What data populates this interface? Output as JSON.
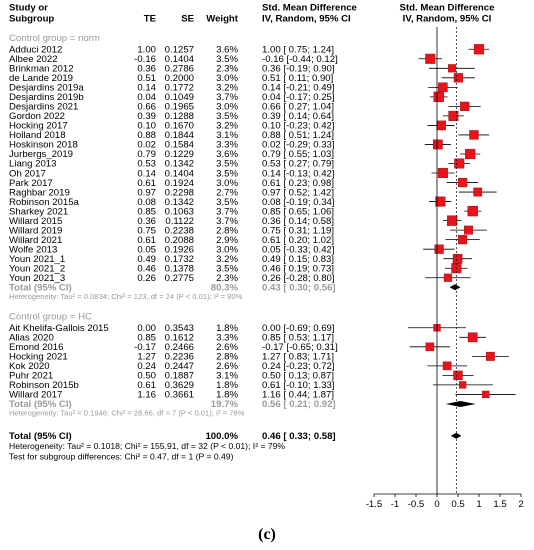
{
  "caption": "(c)",
  "headers": {
    "study_line1": "Study or",
    "study_line2": "Subgroup",
    "te": "TE",
    "se": "SE",
    "weight": "Weight",
    "md_line1": "Std. Mean Difference",
    "md_line2": "IV, Random, 95% CI",
    "plot_line1": "Std. Mean Difference",
    "plot_line2": "IV, Random, 95% CI"
  },
  "chart_data": {
    "type": "forest",
    "title": "",
    "xlabel": "",
    "xlim": [
      -1.5,
      2.0
    ],
    "x_ticks": [
      "-1.5",
      "-1",
      "-0.5",
      "0",
      "0.5",
      "1",
      "1.5",
      "2"
    ],
    "null_line": 0,
    "overall_dashed_line": 0.46,
    "subgroups": [
      {
        "label": "Control group = norm",
        "studies": [
          {
            "name": "Adduci 2012",
            "te": "1.00",
            "se": "0.1257",
            "weight": "3.6%",
            "ci_text": "1.00 [ 0.75; 1.24]",
            "est": 1.0,
            "lo": 0.75,
            "hi": 1.24
          },
          {
            "name": "Albee 2022",
            "te": "-0.16",
            "se": "0.1404",
            "weight": "3.5%",
            "ci_text": "-0.16 [-0.44; 0.12]",
            "est": -0.16,
            "lo": -0.44,
            "hi": 0.12
          },
          {
            "name": "Brinkman 2012",
            "te": "0.36",
            "se": "0.2786",
            "weight": "2.3%",
            "ci_text": "0.36 [-0.19; 0.90]",
            "est": 0.36,
            "lo": -0.19,
            "hi": 0.9
          },
          {
            "name": "de Lande 2019",
            "te": "0.51",
            "se": "0.2000",
            "weight": "3.0%",
            "ci_text": "0.51 [ 0.11; 0.90]",
            "est": 0.51,
            "lo": 0.11,
            "hi": 0.9
          },
          {
            "name": "Desjardins 2019a",
            "te": "0.14",
            "se": "0.1772",
            "weight": "3.2%",
            "ci_text": "0.14 [-0.21; 0.49]",
            "est": 0.14,
            "lo": -0.21,
            "hi": 0.49
          },
          {
            "name": "Desjardins 2019b",
            "te": "0.04",
            "se": "0.1049",
            "weight": "3.7%",
            "ci_text": "0.04 [-0.17; 0.25]",
            "est": 0.04,
            "lo": -0.17,
            "hi": 0.25
          },
          {
            "name": "Desjardins 2021",
            "te": "0.66",
            "se": "0.1965",
            "weight": "3.0%",
            "ci_text": "0.66 [ 0.27; 1.04]",
            "est": 0.66,
            "lo": 0.27,
            "hi": 1.04
          },
          {
            "name": "Gordon 2022",
            "te": "0.39",
            "se": "0.1288",
            "weight": "3.5%",
            "ci_text": "0.39 [ 0.14; 0.64]",
            "est": 0.39,
            "lo": 0.14,
            "hi": 0.64
          },
          {
            "name": "Hocking 2017",
            "te": "0.10",
            "se": "0.1670",
            "weight": "3.2%",
            "ci_text": "0.10 [-0.23; 0.42]",
            "est": 0.1,
            "lo": -0.23,
            "hi": 0.42
          },
          {
            "name": "Holland 2018",
            "te": "0.88",
            "se": "0.1844",
            "weight": "3.1%",
            "ci_text": "0.88 [ 0.51; 1.24]",
            "est": 0.88,
            "lo": 0.51,
            "hi": 1.24
          },
          {
            "name": "Hoskinson 2018",
            "te": "0.02",
            "se": "0.1584",
            "weight": "3.3%",
            "ci_text": "0.02 [-0.29; 0.33]",
            "est": 0.02,
            "lo": -0.29,
            "hi": 0.33
          },
          {
            "name": "Jurbergs_2019",
            "te": "0.79",
            "se": "0.1229",
            "weight": "3.6%",
            "ci_text": "0.79 [ 0.55; 1.03]",
            "est": 0.79,
            "lo": 0.55,
            "hi": 1.03
          },
          {
            "name": "Liang 2013",
            "te": "0.53",
            "se": "0.1342",
            "weight": "3.5%",
            "ci_text": "0.53 [ 0.27; 0.79]",
            "est": 0.53,
            "lo": 0.27,
            "hi": 0.79
          },
          {
            "name": "Oh 2017",
            "te": "0.14",
            "se": "0.1404",
            "weight": "3.5%",
            "ci_text": "0.14 [-0.13; 0.42]",
            "est": 0.14,
            "lo": -0.13,
            "hi": 0.42
          },
          {
            "name": "Park 2017",
            "te": "0.61",
            "se": "0.1924",
            "weight": "3.0%",
            "ci_text": "0.61 [ 0.23; 0.98]",
            "est": 0.61,
            "lo": 0.23,
            "hi": 0.98
          },
          {
            "name": "Raghbar 2019",
            "te": "0.97",
            "se": "0.2298",
            "weight": "2.7%",
            "ci_text": "0.97 [ 0.52; 1.42]",
            "est": 0.97,
            "lo": 0.52,
            "hi": 1.42
          },
          {
            "name": "Robinson 2015a",
            "te": "0.08",
            "se": "0.1342",
            "weight": "3.5%",
            "ci_text": "0.08 [-0.19; 0.34]",
            "est": 0.08,
            "lo": -0.19,
            "hi": 0.34
          },
          {
            "name": "Sharkey 2021",
            "te": "0.85",
            "se": "0.1063",
            "weight": "3.7%",
            "ci_text": "0.85 [ 0.65; 1.06]",
            "est": 0.85,
            "lo": 0.65,
            "hi": 1.06
          },
          {
            "name": "Willard 2015",
            "te": "0.36",
            "se": "0.1122",
            "weight": "3.7%",
            "ci_text": "0.36 [ 0.14; 0.58]",
            "est": 0.36,
            "lo": 0.14,
            "hi": 0.58
          },
          {
            "name": "Willard 2019",
            "te": "0.75",
            "se": "0.2238",
            "weight": "2.8%",
            "ci_text": "0.75 [ 0.31; 1.19]",
            "est": 0.75,
            "lo": 0.31,
            "hi": 1.19
          },
          {
            "name": "Willard 2021",
            "te": "0.61",
            "se": "0.2088",
            "weight": "2.9%",
            "ci_text": "0.61 [ 0.20; 1.02]",
            "est": 0.61,
            "lo": 0.2,
            "hi": 1.02
          },
          {
            "name": "Wolfe 2013",
            "te": "0.05",
            "se": "0.1926",
            "weight": "3.0%",
            "ci_text": "0.05 [-0.33; 0.42]",
            "est": 0.05,
            "lo": -0.33,
            "hi": 0.42
          },
          {
            "name": "Youn 2021_1",
            "te": "0.49",
            "se": "0.1732",
            "weight": "3.2%",
            "ci_text": "0.49 [ 0.15; 0.83]",
            "est": 0.49,
            "lo": 0.15,
            "hi": 0.83
          },
          {
            "name": "Youn 2021_2",
            "te": "0.46",
            "se": "0.1378",
            "weight": "3.5%",
            "ci_text": "0.46 [ 0.19; 0.73]",
            "est": 0.46,
            "lo": 0.19,
            "hi": 0.73
          },
          {
            "name": "Youn 2021_3",
            "te": "0.26",
            "se": "0.2775",
            "weight": "2.3%",
            "ci_text": "0.26 [-0.28; 0.80]",
            "est": 0.26,
            "lo": -0.28,
            "hi": 0.8
          }
        ],
        "total": {
          "label": "Total (95% CI)",
          "weight": "80.3%",
          "ci_text": "0.43 [ 0.30; 0.56]",
          "est": 0.43,
          "lo": 0.3,
          "hi": 0.56
        },
        "heterogeneity": "Heterogeneity: Tau² = 0.0834; Chi² = 123, df = 24 (P < 0.01); I² = 80%"
      },
      {
        "label": "Control group = HC",
        "studies": [
          {
            "name": "Ait Khelifa-Gallois 2015",
            "te": "0.00",
            "se": "0.3543",
            "weight": "1.8%",
            "ci_text": "0.00 [-0.69; 0.69]",
            "est": 0.0,
            "lo": -0.69,
            "hi": 0.69
          },
          {
            "name": "Alias 2020",
            "te": "0.85",
            "se": "0.1612",
            "weight": "3.3%",
            "ci_text": "0.85 [ 0.53; 1.17]",
            "est": 0.85,
            "lo": 0.53,
            "hi": 1.17
          },
          {
            "name": "Emond 2016",
            "te": "-0.17",
            "se": "0.2466",
            "weight": "2.6%",
            "ci_text": "-0.17 [-0.65; 0.31]",
            "est": -0.17,
            "lo": -0.65,
            "hi": 0.31
          },
          {
            "name": "Hocking 2021",
            "te": "1.27",
            "se": "0.2236",
            "weight": "2.8%",
            "ci_text": "1.27 [ 0.83; 1.71]",
            "est": 1.27,
            "lo": 0.83,
            "hi": 1.71
          },
          {
            "name": "Kok 2020",
            "te": "0.24",
            "se": "0.2447",
            "weight": "2.6%",
            "ci_text": "0.24 [-0.23; 0.72]",
            "est": 0.24,
            "lo": -0.23,
            "hi": 0.72
          },
          {
            "name": "Puhr 2021",
            "te": "0.50",
            "se": "0.1887",
            "weight": "3.1%",
            "ci_text": "0.50 [ 0.13; 0.87]",
            "est": 0.5,
            "lo": 0.13,
            "hi": 0.87
          },
          {
            "name": "Robinson 2015b",
            "te": "0.61",
            "se": "0.3629",
            "weight": "1.8%",
            "ci_text": "0.61 [-0.10; 1.33]",
            "est": 0.61,
            "lo": -0.1,
            "hi": 1.33
          },
          {
            "name": "Willard 2017",
            "te": "1.16",
            "se": "0.3661",
            "weight": "1.8%",
            "ci_text": "1.16 [ 0.44; 1.87]",
            "est": 1.16,
            "lo": 0.44,
            "hi": 1.87
          }
        ],
        "total": {
          "label": "Total (95% CI)",
          "weight": "19.7%",
          "ci_text": "0.56 [ 0.21; 0.92]",
          "est": 0.56,
          "lo": 0.21,
          "hi": 0.92
        },
        "heterogeneity": "Heterogeneity: Tau² = 0.1946; Chi² = 28.66, df = 7 (P < 0.01); I² = 76%"
      }
    ],
    "overall": {
      "label": "Total (95% CI)",
      "weight": "100.0%",
      "ci_text": "0.46 [ 0.33; 0.58]",
      "est": 0.46,
      "lo": 0.33,
      "hi": 0.58,
      "heterogeneity": "Heterogeneity: Tau² = 0.1018; Chi² = 155.91, df = 32 (P < 0.01); I² = 79%",
      "subgroup_test": "Test for subgroup differences: Chi² = 0.47, df = 1 (P = 0.49)"
    },
    "colors": {
      "square": "#e8131b",
      "square_edge": "#8a0a0e",
      "diamond": "#000000",
      "total_text": "#9a9a9a",
      "subgroup_label": "#9a9a9a"
    }
  }
}
